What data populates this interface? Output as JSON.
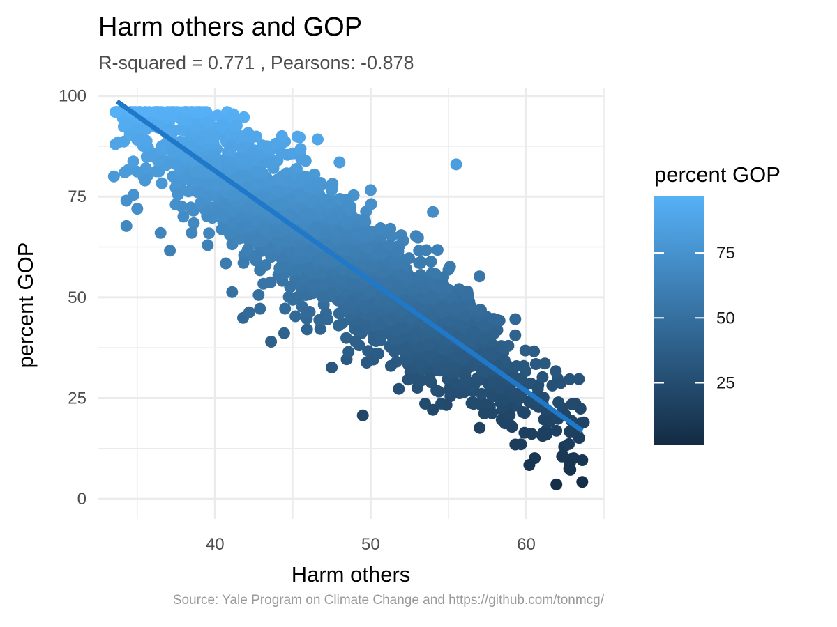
{
  "chart_data": {
    "type": "scatter",
    "title": "Harm others and GOP",
    "subtitle": "R-squared =  0.771 , Pearsons: -0.878",
    "xlabel": "Harm others",
    "ylabel": "percent GOP",
    "caption": "Source: Yale Program on Climate Change and https://github.com/tonmcg/",
    "xlim": [
      32.5,
      65
    ],
    "ylim": [
      -5,
      102
    ],
    "x_ticks": [
      40,
      50,
      60
    ],
    "x_tick_labels": [
      "40",
      "50",
      "60"
    ],
    "x_minor": [
      35,
      45,
      55,
      65
    ],
    "y_ticks": [
      0,
      25,
      50,
      75,
      100
    ],
    "y_tick_labels": [
      "0",
      "25",
      "50",
      "75",
      "100"
    ],
    "y_minor": [
      12.5,
      37.5,
      62.5,
      87.5
    ],
    "grid": true,
    "legend": {
      "title": "percent GOP",
      "placement": "right",
      "ticks": [
        25,
        50,
        75
      ],
      "tick_labels": [
        "25",
        "50",
        "75"
      ],
      "range": [
        1,
        97
      ],
      "color_low": "#132b43",
      "color_high": "#56b1f7"
    },
    "fit_line": {
      "x": [
        33.7,
        63.6
      ],
      "y": [
        98.6,
        16.9
      ],
      "color": "#1f78c8"
    },
    "cloud": {
      "n": 3000,
      "slope": -2.73,
      "intercept": 190.6,
      "x_mean": 48,
      "x_sd": 6.2,
      "x_min": 33.5,
      "x_max": 63.7,
      "residual_sd": 7.0
    },
    "points": [
      [
        33.6,
        88.0
      ],
      [
        33.5,
        80.0
      ],
      [
        34.2,
        81.0
      ],
      [
        34.3,
        74.0
      ],
      [
        34.3,
        67.7
      ],
      [
        35.0,
        89.1
      ],
      [
        35.6,
        88.8
      ],
      [
        35.0,
        72.0
      ],
      [
        35.5,
        79.0
      ],
      [
        37.2,
        95.5
      ],
      [
        37.1,
        61.6
      ],
      [
        38.2,
        93.8
      ],
      [
        40.4,
        92.7
      ],
      [
        41.3,
        92.4
      ],
      [
        44.3,
        90.0
      ],
      [
        46.6,
        89.2
      ],
      [
        48.0,
        83.5
      ],
      [
        50.0,
        76.6
      ],
      [
        55.5,
        83.0
      ],
      [
        54.0,
        71.2
      ],
      [
        57.0,
        55.2
      ],
      [
        41.1,
        51.3
      ],
      [
        41.8,
        44.9
      ],
      [
        42.2,
        46.3
      ],
      [
        42.8,
        50.6
      ],
      [
        43.6,
        39.0
      ],
      [
        47.5,
        32.6
      ],
      [
        49.5,
        20.7
      ],
      [
        53.5,
        23.6
      ],
      [
        54.0,
        22.1
      ],
      [
        59.3,
        44.6
      ],
      [
        59.3,
        40.6
      ],
      [
        60.5,
        36.6
      ],
      [
        60.2,
        8.4
      ],
      [
        62.3,
        10.5
      ],
      [
        62.8,
        8.6
      ],
      [
        63.6,
        4.2
      ],
      [
        63.6,
        9.6
      ],
      [
        63.4,
        15.1
      ],
      [
        63.7,
        19.0
      ],
      [
        62.8,
        29.7
      ],
      [
        61.9,
        31.7
      ],
      [
        61.2,
        33.6
      ],
      [
        59.3,
        13.5
      ],
      [
        58.5,
        24.5
      ],
      [
        57.3,
        21.2
      ],
      [
        52.4,
        29.6
      ],
      [
        51.3,
        33.0
      ],
      [
        50.5,
        36.0
      ],
      [
        45.0,
        49.4
      ],
      [
        44.5,
        47.2
      ],
      [
        46.7,
        44.4
      ],
      [
        52.0,
        55.7
      ],
      [
        55.1,
        57.6
      ],
      [
        45.5,
        86.8
      ],
      [
        39.0,
        89.0
      ],
      [
        36.0,
        85.0
      ],
      [
        37.5,
        83.0
      ],
      [
        38.5,
        66.0
      ],
      [
        36.5,
        66.0
      ]
    ]
  }
}
